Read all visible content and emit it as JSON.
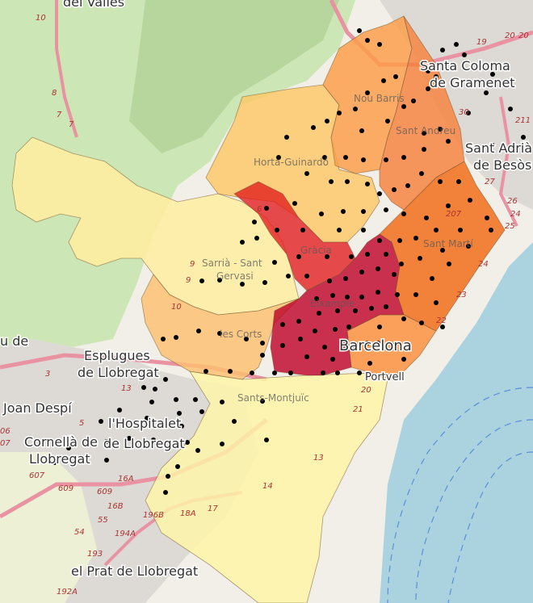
{
  "map": {
    "place_labels": [
      {
        "id": "del-valles",
        "text": "del Vallès"
      },
      {
        "id": "santa-coloma-1",
        "text": "Santa Coloma"
      },
      {
        "id": "santa-coloma-2",
        "text": "de Gramenet"
      },
      {
        "id": "sant-adria-1",
        "text": "Sant Adrià"
      },
      {
        "id": "sant-adria-2",
        "text": "de Besòs"
      },
      {
        "id": "esplugues-1",
        "text": "Esplugues"
      },
      {
        "id": "esplugues-2",
        "text": "de Llobregat"
      },
      {
        "id": "joan-despi",
        "text": "Joan Despí"
      },
      {
        "id": "hospitalet-1",
        "text": "l'Hospitalet"
      },
      {
        "id": "hospitalet-2",
        "text": "de Llobregat"
      },
      {
        "id": "cornella-1",
        "text": "Cornellà de"
      },
      {
        "id": "cornella-2",
        "text": "Llobregat"
      },
      {
        "id": "prat",
        "text": "el Prat de Llobregat"
      },
      {
        "id": "barcelona",
        "text": "Barcelona"
      },
      {
        "id": "u-de",
        "text": "u de"
      },
      {
        "id": "portvell",
        "text": "Portvell"
      }
    ],
    "district_labels": [
      {
        "id": "nou-barris",
        "text": "Nou Barris"
      },
      {
        "id": "sant-andreu",
        "text": "Sant Andreu"
      },
      {
        "id": "horta-guinardo",
        "text": "Horta-Guinardó"
      },
      {
        "id": "gracia",
        "text": "Gràcia"
      },
      {
        "id": "sarria-1",
        "text": "Sarrià - Sant"
      },
      {
        "id": "sarria-2",
        "text": "Gervasi"
      },
      {
        "id": "eixample",
        "text": "Eixample"
      },
      {
        "id": "les-corts",
        "text": "les Corts"
      },
      {
        "id": "sant-marti",
        "text": "Sant Martí"
      },
      {
        "id": "sants-montjuic",
        "text": "Sants-Montjuïc"
      }
    ],
    "road_numbers": [
      "10",
      "8",
      "7",
      "7",
      "19",
      "20",
      "20",
      "30",
      "211",
      "27",
      "26",
      "24",
      "25",
      "207",
      "24",
      "23",
      "22",
      "10",
      "9",
      "9",
      "6",
      "3",
      "13",
      "5",
      "06",
      "07",
      "607",
      "609",
      "609",
      "16A",
      "16B",
      "55",
      "196B",
      "18A",
      "17",
      "54",
      "194A",
      "193",
      "192A",
      "13",
      "14",
      "21",
      "20"
    ],
    "district_colors": {
      "eixample": "#bd0026",
      "gracia": "#e31a1c",
      "sant_marti": "#f16913",
      "sant_andreu": "#f7813c",
      "nou_barris": "#fd9c45",
      "ciutat_vella": "#fb8f3a",
      "horta_guinardo": "#fdc865",
      "les_corts": "#fdbf6f",
      "sarria": "#ffeda0",
      "sants_montjuic": "#fff5a6"
    }
  }
}
